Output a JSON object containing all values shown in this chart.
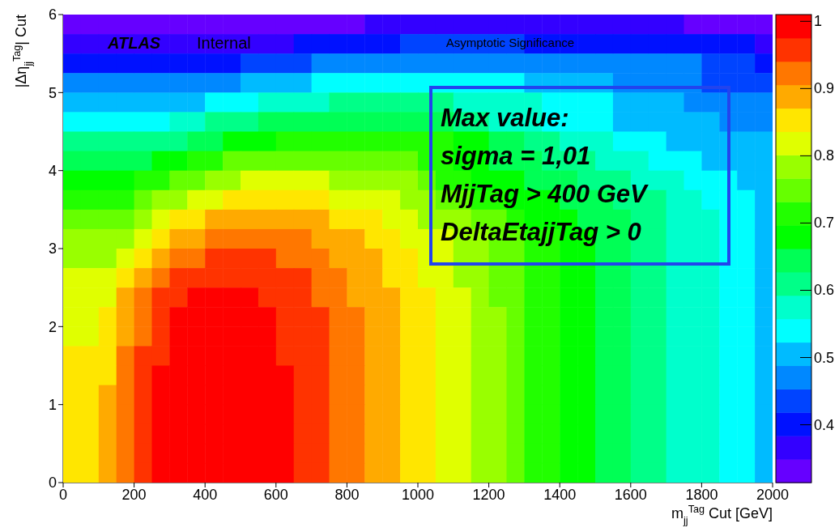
{
  "chart_data": {
    "type": "heatmap",
    "title": "Asymptotic Significance",
    "xlabel": "m$_{jj}$$^{Tag}$ Cut [GeV]",
    "ylabel": "|Δη$_{jj}$$^{Tag}$| Cut",
    "annotations": [
      "ATLAS",
      "Internal",
      "Max value:\nsigma = 1,01\nMjjTag > 400 GeV\nDeltaEtajjTag > 0"
    ],
    "xlim": [
      0,
      2000
    ],
    "xticks": [
      0,
      200,
      400,
      600,
      800,
      1000,
      1200,
      1400,
      1600,
      1800,
      2000
    ],
    "ylim": [
      0,
      6
    ],
    "yticks": [
      0,
      1,
      2,
      3,
      4,
      5,
      6
    ],
    "clim": [
      0.314,
      1.01
    ],
    "cticks": [
      0.4,
      0.5,
      0.6,
      0.7,
      0.8,
      0.9,
      1
    ],
    "cells": [
      [
        0.33,
        0.33,
        0.33,
        0.33,
        0.33,
        0.33,
        0.33,
        0.33,
        0.33,
        0.33,
        0.33,
        0.33,
        0.33,
        0.33,
        0.33,
        0.33,
        0.33,
        0.37,
        0.37,
        0.37,
        0.37,
        0.37,
        0.37,
        0.37,
        0.37,
        0.37,
        0.37,
        0.37,
        0.37,
        0.37,
        0.37,
        0.37,
        0.37,
        0.37,
        0.37,
        0.33,
        0.33,
        0.33,
        0.33,
        0.33
      ],
      [
        0.37,
        0.37,
        0.37,
        0.37,
        0.37,
        0.37,
        0.37,
        0.37,
        0.37,
        0.37,
        0.37,
        0.37,
        0.37,
        0.4,
        0.4,
        0.4,
        0.4,
        0.4,
        0.4,
        0.44,
        0.44,
        0.44,
        0.44,
        0.44,
        0.44,
        0.44,
        0.4,
        0.4,
        0.4,
        0.4,
        0.4,
        0.4,
        0.4,
        0.4,
        0.4,
        0.4,
        0.4,
        0.4,
        0.4,
        0.37
      ],
      [
        0.4,
        0.4,
        0.4,
        0.4,
        0.4,
        0.4,
        0.4,
        0.4,
        0.4,
        0.4,
        0.44,
        0.44,
        0.44,
        0.44,
        0.47,
        0.47,
        0.47,
        0.47,
        0.47,
        0.47,
        0.47,
        0.47,
        0.47,
        0.47,
        0.47,
        0.47,
        0.47,
        0.47,
        0.47,
        0.47,
        0.47,
        0.47,
        0.47,
        0.47,
        0.47,
        0.47,
        0.44,
        0.44,
        0.44,
        0.4
      ],
      [
        0.47,
        0.47,
        0.47,
        0.47,
        0.47,
        0.47,
        0.47,
        0.47,
        0.47,
        0.47,
        0.51,
        0.51,
        0.51,
        0.51,
        0.54,
        0.54,
        0.54,
        0.54,
        0.54,
        0.54,
        0.54,
        0.54,
        0.54,
        0.54,
        0.54,
        0.54,
        0.51,
        0.51,
        0.51,
        0.51,
        0.51,
        0.47,
        0.47,
        0.47,
        0.47,
        0.47,
        0.44,
        0.44,
        0.44,
        0.44
      ],
      [
        0.51,
        0.51,
        0.51,
        0.51,
        0.51,
        0.51,
        0.51,
        0.51,
        0.54,
        0.54,
        0.54,
        0.57,
        0.57,
        0.57,
        0.57,
        0.61,
        0.61,
        0.61,
        0.61,
        0.61,
        0.61,
        0.61,
        0.57,
        0.57,
        0.57,
        0.57,
        0.57,
        0.54,
        0.54,
        0.54,
        0.54,
        0.51,
        0.51,
        0.51,
        0.51,
        0.47,
        0.47,
        0.47,
        0.47,
        0.47
      ],
      [
        0.54,
        0.54,
        0.54,
        0.54,
        0.54,
        0.54,
        0.57,
        0.57,
        0.61,
        0.61,
        0.61,
        0.64,
        0.64,
        0.64,
        0.64,
        0.64,
        0.64,
        0.64,
        0.64,
        0.64,
        0.64,
        0.64,
        0.61,
        0.61,
        0.57,
        0.57,
        0.57,
        0.54,
        0.54,
        0.54,
        0.54,
        0.51,
        0.51,
        0.51,
        0.51,
        0.51,
        0.51,
        0.47,
        0.47,
        0.47
      ],
      [
        0.61,
        0.61,
        0.61,
        0.61,
        0.61,
        0.61,
        0.61,
        0.64,
        0.64,
        0.68,
        0.68,
        0.68,
        0.71,
        0.71,
        0.71,
        0.71,
        0.71,
        0.71,
        0.71,
        0.71,
        0.71,
        0.71,
        0.68,
        0.68,
        0.64,
        0.64,
        0.61,
        0.61,
        0.57,
        0.57,
        0.57,
        0.54,
        0.54,
        0.54,
        0.51,
        0.51,
        0.51,
        0.51,
        0.51,
        0.51
      ],
      [
        0.64,
        0.64,
        0.64,
        0.64,
        0.64,
        0.68,
        0.68,
        0.71,
        0.71,
        0.75,
        0.75,
        0.75,
        0.75,
        0.75,
        0.75,
        0.75,
        0.75,
        0.75,
        0.75,
        0.75,
        0.71,
        0.71,
        0.68,
        0.68,
        0.64,
        0.64,
        0.64,
        0.61,
        0.61,
        0.61,
        0.57,
        0.57,
        0.57,
        0.54,
        0.54,
        0.54,
        0.51,
        0.51,
        0.51,
        0.51
      ],
      [
        0.68,
        0.68,
        0.68,
        0.68,
        0.71,
        0.71,
        0.75,
        0.75,
        0.78,
        0.78,
        0.82,
        0.82,
        0.82,
        0.82,
        0.82,
        0.78,
        0.78,
        0.78,
        0.78,
        0.78,
        0.75,
        0.71,
        0.71,
        0.68,
        0.68,
        0.68,
        0.64,
        0.64,
        0.64,
        0.61,
        0.61,
        0.61,
        0.57,
        0.57,
        0.57,
        0.54,
        0.54,
        0.54,
        0.51,
        0.51
      ],
      [
        0.71,
        0.71,
        0.71,
        0.71,
        0.75,
        0.78,
        0.78,
        0.82,
        0.82,
        0.85,
        0.85,
        0.85,
        0.85,
        0.85,
        0.85,
        0.82,
        0.82,
        0.82,
        0.82,
        0.78,
        0.78,
        0.75,
        0.75,
        0.71,
        0.71,
        0.68,
        0.68,
        0.68,
        0.64,
        0.64,
        0.64,
        0.61,
        0.61,
        0.61,
        0.57,
        0.57,
        0.54,
        0.54,
        0.54,
        0.51
      ],
      [
        0.75,
        0.75,
        0.75,
        0.75,
        0.78,
        0.82,
        0.85,
        0.85,
        0.89,
        0.89,
        0.89,
        0.89,
        0.89,
        0.89,
        0.89,
        0.85,
        0.85,
        0.85,
        0.82,
        0.82,
        0.78,
        0.78,
        0.78,
        0.75,
        0.75,
        0.71,
        0.68,
        0.68,
        0.68,
        0.64,
        0.64,
        0.64,
        0.61,
        0.61,
        0.57,
        0.57,
        0.57,
        0.54,
        0.54,
        0.51
      ],
      [
        0.78,
        0.78,
        0.78,
        0.78,
        0.82,
        0.85,
        0.89,
        0.89,
        0.92,
        0.92,
        0.92,
        0.92,
        0.92,
        0.92,
        0.89,
        0.89,
        0.89,
        0.85,
        0.85,
        0.82,
        0.82,
        0.82,
        0.78,
        0.78,
        0.75,
        0.75,
        0.71,
        0.71,
        0.68,
        0.68,
        0.64,
        0.64,
        0.61,
        0.61,
        0.57,
        0.57,
        0.57,
        0.54,
        0.54,
        0.51
      ],
      [
        0.78,
        0.78,
        0.78,
        0.82,
        0.85,
        0.89,
        0.92,
        0.92,
        0.96,
        0.96,
        0.96,
        0.96,
        0.92,
        0.92,
        0.92,
        0.89,
        0.89,
        0.89,
        0.85,
        0.85,
        0.82,
        0.82,
        0.78,
        0.78,
        0.75,
        0.75,
        0.71,
        0.71,
        0.68,
        0.68,
        0.64,
        0.64,
        0.61,
        0.61,
        0.57,
        0.57,
        0.57,
        0.54,
        0.54,
        0.51
      ],
      [
        0.82,
        0.82,
        0.82,
        0.85,
        0.89,
        0.92,
        0.96,
        0.96,
        0.96,
        0.96,
        0.96,
        0.96,
        0.96,
        0.96,
        0.92,
        0.92,
        0.89,
        0.89,
        0.85,
        0.85,
        0.82,
        0.82,
        0.78,
        0.78,
        0.75,
        0.75,
        0.71,
        0.71,
        0.68,
        0.68,
        0.64,
        0.64,
        0.61,
        0.61,
        0.57,
        0.57,
        0.57,
        0.54,
        0.54,
        0.51
      ],
      [
        0.82,
        0.82,
        0.82,
        0.89,
        0.92,
        0.96,
        0.96,
        0.99,
        0.99,
        0.99,
        0.99,
        0.96,
        0.96,
        0.96,
        0.92,
        0.92,
        0.89,
        0.89,
        0.89,
        0.85,
        0.85,
        0.82,
        0.82,
        0.78,
        0.75,
        0.75,
        0.71,
        0.71,
        0.68,
        0.68,
        0.64,
        0.64,
        0.61,
        0.61,
        0.57,
        0.57,
        0.57,
        0.54,
        0.54,
        0.51
      ],
      [
        0.82,
        0.82,
        0.85,
        0.89,
        0.92,
        0.96,
        0.99,
        0.99,
        0.99,
        0.99,
        0.99,
        0.99,
        0.96,
        0.96,
        0.96,
        0.92,
        0.92,
        0.89,
        0.89,
        0.85,
        0.85,
        0.82,
        0.82,
        0.78,
        0.78,
        0.75,
        0.71,
        0.71,
        0.68,
        0.68,
        0.64,
        0.64,
        0.61,
        0.61,
        0.57,
        0.57,
        0.57,
        0.54,
        0.54,
        0.51
      ],
      [
        0.82,
        0.82,
        0.85,
        0.89,
        0.92,
        0.96,
        0.99,
        0.99,
        0.99,
        0.99,
        0.99,
        0.99,
        0.96,
        0.96,
        0.96,
        0.92,
        0.92,
        0.89,
        0.89,
        0.85,
        0.85,
        0.82,
        0.82,
        0.78,
        0.78,
        0.75,
        0.71,
        0.71,
        0.68,
        0.68,
        0.64,
        0.64,
        0.61,
        0.61,
        0.57,
        0.57,
        0.57,
        0.54,
        0.54,
        0.51
      ],
      [
        0.85,
        0.85,
        0.85,
        0.92,
        0.96,
        0.96,
        0.99,
        0.99,
        0.99,
        0.99,
        0.99,
        0.99,
        0.96,
        0.96,
        0.96,
        0.92,
        0.92,
        0.89,
        0.89,
        0.85,
        0.85,
        0.82,
        0.82,
        0.78,
        0.78,
        0.75,
        0.71,
        0.71,
        0.68,
        0.68,
        0.64,
        0.64,
        0.61,
        0.61,
        0.57,
        0.57,
        0.57,
        0.54,
        0.54,
        0.51
      ],
      [
        0.85,
        0.85,
        0.85,
        0.92,
        0.96,
        0.99,
        0.99,
        0.99,
        0.99,
        0.99,
        0.99,
        0.99,
        0.99,
        0.96,
        0.96,
        0.92,
        0.92,
        0.89,
        0.89,
        0.85,
        0.85,
        0.82,
        0.82,
        0.78,
        0.78,
        0.75,
        0.71,
        0.71,
        0.68,
        0.68,
        0.64,
        0.64,
        0.61,
        0.61,
        0.57,
        0.57,
        0.57,
        0.54,
        0.54,
        0.51
      ],
      [
        0.85,
        0.85,
        0.89,
        0.92,
        0.96,
        0.99,
        0.99,
        0.99,
        0.99,
        0.99,
        0.99,
        0.99,
        0.99,
        0.96,
        0.96,
        0.92,
        0.92,
        0.89,
        0.89,
        0.85,
        0.85,
        0.82,
        0.82,
        0.78,
        0.78,
        0.75,
        0.71,
        0.71,
        0.68,
        0.68,
        0.64,
        0.64,
        0.61,
        0.61,
        0.57,
        0.57,
        0.57,
        0.54,
        0.54,
        0.51
      ],
      [
        0.85,
        0.85,
        0.89,
        0.92,
        0.96,
        0.99,
        0.99,
        0.99,
        0.99,
        0.99,
        0.99,
        0.99,
        0.99,
        0.96,
        0.96,
        0.92,
        0.92,
        0.89,
        0.89,
        0.85,
        0.85,
        0.82,
        0.82,
        0.78,
        0.78,
        0.75,
        0.71,
        0.71,
        0.68,
        0.68,
        0.64,
        0.64,
        0.61,
        0.61,
        0.57,
        0.57,
        0.57,
        0.54,
        0.54,
        0.51
      ],
      [
        0.85,
        0.85,
        0.89,
        0.92,
        0.96,
        0.99,
        0.99,
        0.99,
        0.99,
        0.99,
        0.99,
        0.99,
        0.99,
        0.96,
        0.96,
        0.92,
        0.92,
        0.89,
        0.89,
        0.85,
        0.85,
        0.82,
        0.82,
        0.78,
        0.78,
        0.75,
        0.71,
        0.71,
        0.68,
        0.68,
        0.64,
        0.64,
        0.61,
        0.61,
        0.57,
        0.57,
        0.57,
        0.54,
        0.54,
        0.51
      ],
      [
        0.85,
        0.85,
        0.89,
        0.92,
        0.96,
        0.99,
        0.99,
        0.99,
        0.99,
        0.99,
        0.99,
        0.99,
        0.99,
        0.96,
        0.96,
        0.92,
        0.92,
        0.89,
        0.89,
        0.85,
        0.85,
        0.82,
        0.82,
        0.78,
        0.78,
        0.75,
        0.71,
        0.71,
        0.68,
        0.68,
        0.64,
        0.64,
        0.61,
        0.61,
        0.57,
        0.57,
        0.57,
        0.54,
        0.54,
        0.51
      ],
      [
        0.85,
        0.85,
        0.89,
        0.92,
        0.96,
        0.99,
        0.99,
        0.99,
        0.99,
        0.99,
        0.99,
        0.99,
        0.99,
        0.96,
        0.96,
        0.92,
        0.92,
        0.89,
        0.89,
        0.85,
        0.85,
        0.82,
        0.82,
        0.78,
        0.78,
        0.75,
        0.71,
        0.71,
        0.68,
        0.68,
        0.64,
        0.64,
        0.61,
        0.61,
        0.57,
        0.57,
        0.57,
        0.54,
        0.54,
        0.51
      ]
    ]
  }
}
